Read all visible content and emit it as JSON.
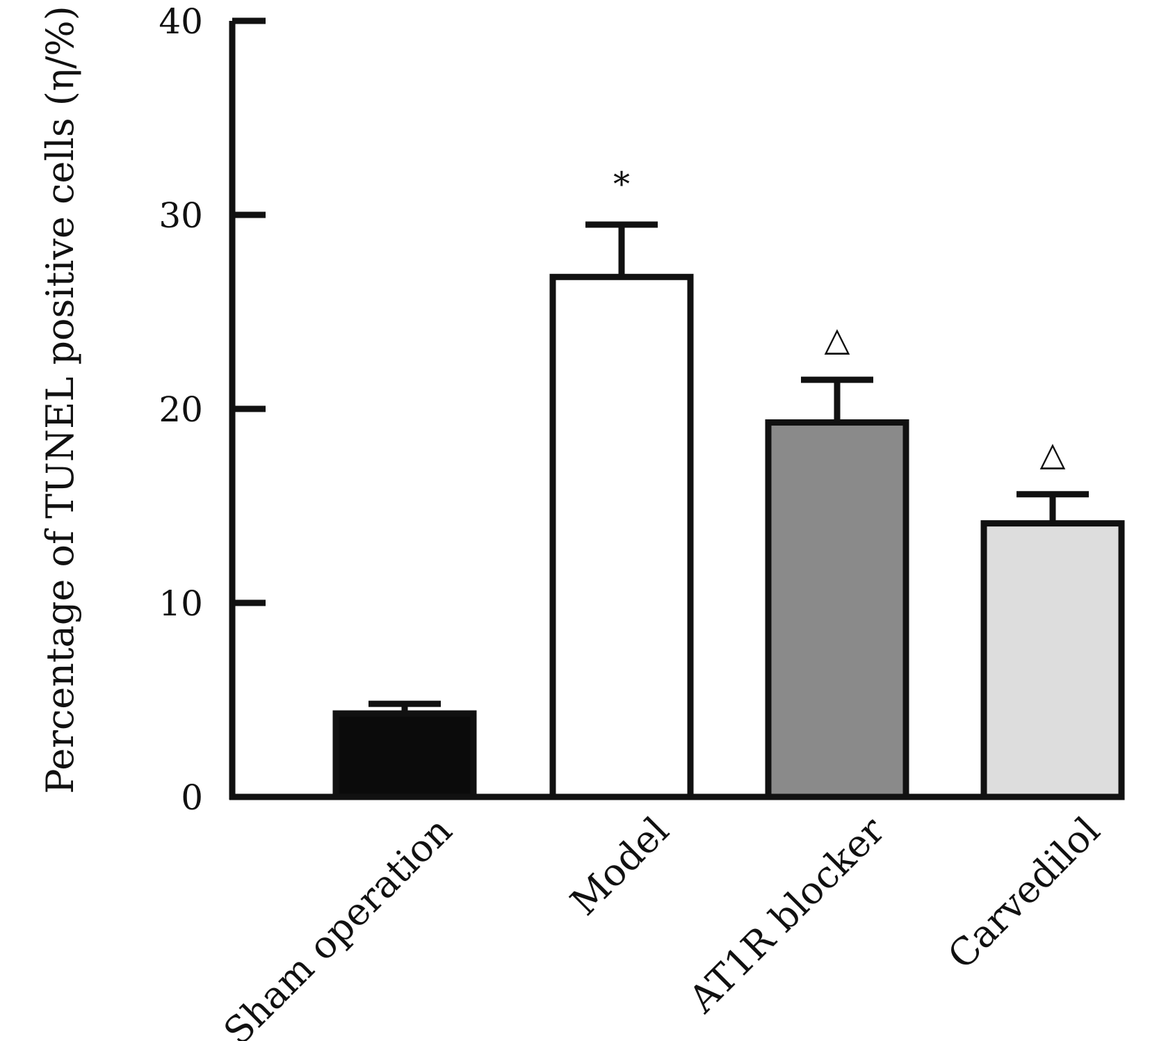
{
  "chart_data": {
    "type": "bar",
    "title": "",
    "ylabel": "Percentage of TUNEL positive cells (η/%)",
    "xlabel": "",
    "ylim": [
      0,
      40
    ],
    "yticks": [
      0,
      10,
      20,
      30,
      40
    ],
    "yticklabels": [
      "0",
      "10",
      "20",
      "30",
      "40"
    ],
    "categories": [
      "Sham operation",
      "Model",
      "AT1R blocker",
      "Carvedilol"
    ],
    "values": [
      4.3,
      26.8,
      19.3,
      14.1
    ],
    "errors": [
      0.5,
      2.7,
      2.2,
      1.5
    ],
    "annotations": [
      "",
      "*",
      "△",
      "△"
    ],
    "bar_colors": [
      "#0b0b0b",
      "#ffffff",
      "#8a8a8a",
      "#dddddd"
    ],
    "grid": false,
    "legend": "none"
  }
}
